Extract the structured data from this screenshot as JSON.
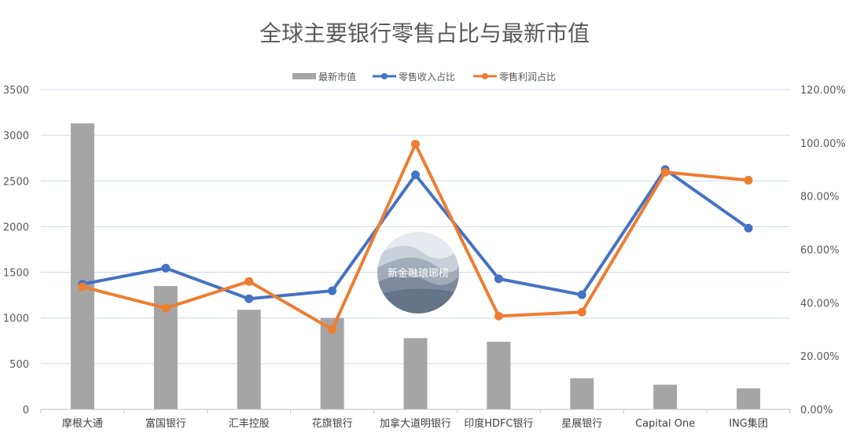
{
  "chart_data": {
    "type": "bar",
    "title": "全球主要银行零售占比与最新市值",
    "categories": [
      "摩根大通",
      "富国银行",
      "汇丰控股",
      "花旗银行",
      "加拿大道明银行",
      "印度HDFC银行",
      "星展银行",
      "Capital One",
      "ING集团"
    ],
    "series": [
      {
        "name": "最新市值",
        "type": "bar",
        "axis": "left",
        "color": "#a5a5a5",
        "values": [
          3130,
          1350,
          1090,
          1000,
          780,
          740,
          340,
          270,
          230
        ]
      },
      {
        "name": "零售收入占比",
        "type": "line",
        "axis": "right",
        "color": "#4472c4",
        "values": [
          0.47,
          0.53,
          0.415,
          0.445,
          0.88,
          0.49,
          0.43,
          0.9,
          0.68
        ]
      },
      {
        "name": "零售利润占比",
        "type": "line",
        "axis": "right",
        "color": "#ed7d31",
        "values": [
          0.46,
          0.38,
          0.48,
          0.3,
          0.995,
          0.35,
          0.365,
          0.89,
          0.86
        ]
      }
    ],
    "y_left": {
      "ylim": [
        0,
        3500
      ],
      "ticks": [
        "0",
        "500",
        "1000",
        "1500",
        "2000",
        "2500",
        "3000",
        "3500"
      ]
    },
    "y_right": {
      "ylim": [
        0,
        1.2
      ],
      "ticks": [
        "0.00%",
        "20.00%",
        "40.00%",
        "60.00%",
        "80.00%",
        "100.00%",
        "120.00%"
      ]
    },
    "legend": "top-center",
    "grid": true
  },
  "watermark": {
    "text": "新金融琅琊榜"
  }
}
